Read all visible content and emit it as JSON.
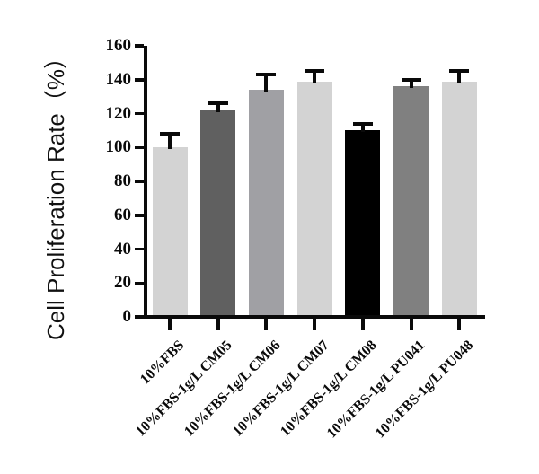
{
  "chart_data": {
    "type": "bar",
    "title": "",
    "xlabel": "",
    "ylabel": "Cell Proliferation Rate（%）",
    "ylim": [
      0,
      160
    ],
    "ytick_step": 20,
    "grid": false,
    "legend_position": "none",
    "categories": [
      "10%FBS",
      "10%FBS-1g/L CM05",
      "10%FBS-1g/L CM06",
      "10%FBS-1g/L CM07",
      "10%FBS-1g/L CM08",
      "10%FBS-1g/L PU041",
      "10%FBS-1g/L PU048"
    ],
    "values": [
      100,
      122,
      134,
      139,
      110,
      136,
      139
    ],
    "errors_plus": [
      8,
      4,
      9,
      6,
      4,
      4,
      6
    ],
    "bar_colors": [
      "#d3d3d3",
      "#606060",
      "#a0a0a4",
      "#d3d3d3",
      "#000000",
      "#808080",
      "#d3d3d3"
    ],
    "axis_color": "#0a0a0a",
    "error_bar_color": "#0a0a0a",
    "background_color": "#ffffff"
  }
}
